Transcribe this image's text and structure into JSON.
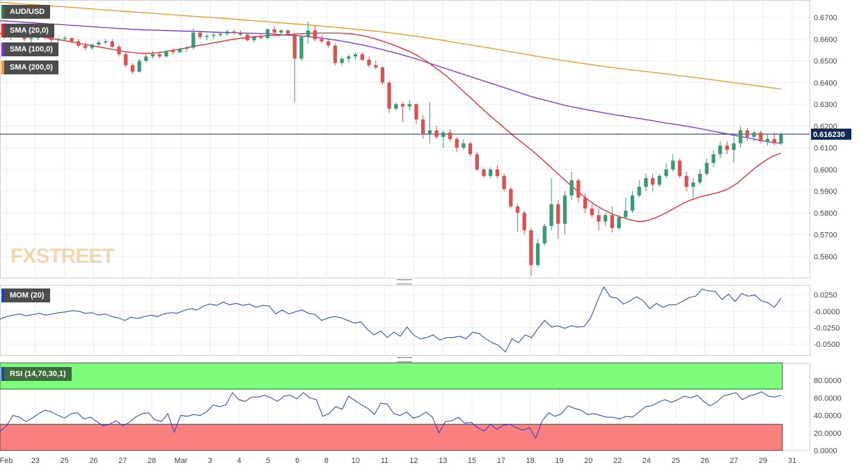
{
  "symbol": "AUD/USD",
  "indicators": {
    "sma20": "SMA (20,0)",
    "sma100": "SMA (100,0)",
    "sma200": "SMA (200,0)",
    "mom": "MOM (20)",
    "rsi": "RSI (14,70,30,1)"
  },
  "logo": "FXSTREET",
  "colors": {
    "sma20": "#e8212b",
    "sma100": "#7b2fd6",
    "sma200": "#f7941d",
    "mom_line": "#1f3ccf",
    "rsi_line": "#1f3ccf",
    "bull": "#3a9a74",
    "bear": "#d9534f",
    "overbought_zone": "#7dfc7d",
    "oversold_zone": "#fa7f7f",
    "price_line": "#0e2a5a"
  },
  "chart_data": [
    {
      "type": "candlestick",
      "name": "price",
      "last_price_label": "0.616230",
      "last_price": 0.61623,
      "ylim": [
        0.55,
        0.678
      ],
      "yticks": [
        "0.6700",
        "0.6600",
        "0.6500",
        "0.6400",
        "0.6300",
        "0.6200",
        "0.6100",
        "0.6000",
        "0.5900",
        "0.5800",
        "0.5700",
        "0.5600"
      ],
      "xticks": [
        "Feb",
        "23",
        "25",
        "26",
        "27",
        "28",
        "Mar",
        "3",
        "4",
        "5",
        "6",
        "8",
        "10",
        "11",
        "12",
        "13",
        "15",
        "17",
        "18",
        "19",
        "20",
        "22",
        "24",
        "25",
        "26",
        "27",
        "29",
        "31"
      ],
      "ohlc": [
        [
          0.663,
          0.664,
          0.66,
          0.661
        ],
        [
          0.661,
          0.663,
          0.6595,
          0.6625
        ],
        [
          0.6625,
          0.664,
          0.661,
          0.6615
        ],
        [
          0.6615,
          0.6625,
          0.659,
          0.66
        ],
        [
          0.66,
          0.6615,
          0.658,
          0.6605
        ],
        [
          0.6605,
          0.6625,
          0.6595,
          0.662
        ],
        [
          0.662,
          0.663,
          0.66,
          0.661
        ],
        [
          0.661,
          0.662,
          0.6585,
          0.6595
        ],
        [
          0.6595,
          0.661,
          0.6585,
          0.66
        ],
        [
          0.66,
          0.6615,
          0.659,
          0.6605
        ],
        [
          0.6605,
          0.661,
          0.658,
          0.659
        ],
        [
          0.659,
          0.66,
          0.656,
          0.657
        ],
        [
          0.657,
          0.6585,
          0.655,
          0.656
        ],
        [
          0.656,
          0.658,
          0.655,
          0.6575
        ],
        [
          0.6575,
          0.6595,
          0.6565,
          0.6585
        ],
        [
          0.6585,
          0.66,
          0.6575,
          0.659
        ],
        [
          0.659,
          0.66,
          0.656,
          0.6565
        ],
        [
          0.6565,
          0.6575,
          0.652,
          0.653
        ],
        [
          0.653,
          0.654,
          0.647,
          0.648
        ],
        [
          0.648,
          0.649,
          0.644,
          0.645
        ],
        [
          0.645,
          0.651,
          0.6445,
          0.65
        ],
        [
          0.65,
          0.653,
          0.649,
          0.652
        ],
        [
          0.652,
          0.6545,
          0.651,
          0.653
        ],
        [
          0.653,
          0.6545,
          0.651,
          0.652
        ],
        [
          0.652,
          0.655,
          0.6515,
          0.6545
        ],
        [
          0.6545,
          0.656,
          0.653,
          0.654
        ],
        [
          0.654,
          0.656,
          0.6535,
          0.6555
        ],
        [
          0.6555,
          0.657,
          0.654,
          0.656
        ],
        [
          0.656,
          0.665,
          0.655,
          0.663
        ],
        [
          0.663,
          0.664,
          0.66,
          0.661
        ],
        [
          0.661,
          0.6625,
          0.6595,
          0.6615
        ],
        [
          0.6615,
          0.663,
          0.66,
          0.662
        ],
        [
          0.662,
          0.6635,
          0.661,
          0.6625
        ],
        [
          0.6625,
          0.6645,
          0.6615,
          0.6635
        ],
        [
          0.6635,
          0.6645,
          0.662,
          0.663
        ],
        [
          0.663,
          0.664,
          0.6615,
          0.662
        ],
        [
          0.662,
          0.663,
          0.659,
          0.6595
        ],
        [
          0.6595,
          0.6615,
          0.6585,
          0.661
        ],
        [
          0.661,
          0.6625,
          0.66,
          0.6605
        ],
        [
          0.6605,
          0.665,
          0.66,
          0.6645
        ],
        [
          0.6645,
          0.666,
          0.662,
          0.663
        ],
        [
          0.663,
          0.6645,
          0.662,
          0.664
        ],
        [
          0.664,
          0.6645,
          0.662,
          0.6625
        ],
        [
          0.6625,
          0.663,
          0.631,
          0.651
        ],
        [
          0.651,
          0.662,
          0.65,
          0.661
        ],
        [
          0.661,
          0.668,
          0.658,
          0.664
        ],
        [
          0.664,
          0.666,
          0.659,
          0.66
        ],
        [
          0.66,
          0.662,
          0.658,
          0.659
        ],
        [
          0.659,
          0.66,
          0.656,
          0.657
        ],
        [
          0.657,
          0.658,
          0.648,
          0.649
        ],
        [
          0.649,
          0.652,
          0.648,
          0.651
        ],
        [
          0.651,
          0.653,
          0.649,
          0.652
        ],
        [
          0.652,
          0.654,
          0.6505,
          0.653
        ],
        [
          0.653,
          0.654,
          0.65,
          0.6505
        ],
        [
          0.6505,
          0.652,
          0.647,
          0.648
        ],
        [
          0.648,
          0.65,
          0.646,
          0.647
        ],
        [
          0.647,
          0.6475,
          0.639,
          0.64
        ],
        [
          0.64,
          0.641,
          0.626,
          0.628
        ],
        [
          0.628,
          0.631,
          0.627,
          0.63
        ],
        [
          0.63,
          0.631,
          0.622,
          0.629
        ],
        [
          0.629,
          0.632,
          0.627,
          0.63
        ],
        [
          0.63,
          0.6305,
          0.621,
          0.623
        ],
        [
          0.623,
          0.625,
          0.614,
          0.616
        ],
        [
          0.616,
          0.631,
          0.612,
          0.618
        ],
        [
          0.618,
          0.62,
          0.614,
          0.615
        ],
        [
          0.615,
          0.618,
          0.61,
          0.617
        ],
        [
          0.617,
          0.6185,
          0.613,
          0.614
        ],
        [
          0.614,
          0.615,
          0.608,
          0.61
        ],
        [
          0.61,
          0.614,
          0.609,
          0.612
        ],
        [
          0.612,
          0.613,
          0.606,
          0.607
        ],
        [
          0.607,
          0.608,
          0.599,
          0.6
        ],
        [
          0.6,
          0.601,
          0.596,
          0.597
        ],
        [
          0.597,
          0.601,
          0.596,
          0.6
        ],
        [
          0.6,
          0.602,
          0.596,
          0.597
        ],
        [
          0.597,
          0.598,
          0.59,
          0.591
        ],
        [
          0.591,
          0.592,
          0.582,
          0.583
        ],
        [
          0.583,
          0.584,
          0.571,
          0.58
        ],
        [
          0.58,
          0.581,
          0.57,
          0.572
        ],
        [
          0.572,
          0.573,
          0.551,
          0.556
        ],
        [
          0.556,
          0.568,
          0.555,
          0.566
        ],
        [
          0.566,
          0.575,
          0.565,
          0.574
        ],
        [
          0.574,
          0.596,
          0.572,
          0.584
        ],
        [
          0.584,
          0.586,
          0.568,
          0.575
        ],
        [
          0.575,
          0.59,
          0.57,
          0.588
        ],
        [
          0.588,
          0.599,
          0.586,
          0.595
        ],
        [
          0.595,
          0.596,
          0.585,
          0.587
        ],
        [
          0.587,
          0.589,
          0.58,
          0.582
        ],
        [
          0.582,
          0.584,
          0.578,
          0.579
        ],
        [
          0.579,
          0.582,
          0.572,
          0.576
        ],
        [
          0.576,
          0.58,
          0.574,
          0.579
        ],
        [
          0.579,
          0.583,
          0.571,
          0.573
        ],
        [
          0.573,
          0.579,
          0.572,
          0.578
        ],
        [
          0.578,
          0.587,
          0.577,
          0.581
        ],
        [
          0.581,
          0.59,
          0.58,
          0.588
        ],
        [
          0.588,
          0.595,
          0.587,
          0.592
        ],
        [
          0.592,
          0.598,
          0.59,
          0.596
        ],
        [
          0.596,
          0.598,
          0.59,
          0.593
        ],
        [
          0.593,
          0.598,
          0.592,
          0.597
        ],
        [
          0.597,
          0.603,
          0.596,
          0.6
        ],
        [
          0.6,
          0.607,
          0.599,
          0.604
        ],
        [
          0.604,
          0.605,
          0.596,
          0.597
        ],
        [
          0.597,
          0.599,
          0.59,
          0.592
        ],
        [
          0.592,
          0.596,
          0.587,
          0.594
        ],
        [
          0.594,
          0.6,
          0.593,
          0.598
        ],
        [
          0.598,
          0.605,
          0.597,
          0.603
        ],
        [
          0.603,
          0.609,
          0.601,
          0.607
        ],
        [
          0.607,
          0.613,
          0.605,
          0.611
        ],
        [
          0.611,
          0.613,
          0.607,
          0.609
        ],
        [
          0.609,
          0.615,
          0.603,
          0.612
        ],
        [
          0.612,
          0.62,
          0.61,
          0.618
        ],
        [
          0.618,
          0.619,
          0.613,
          0.615
        ],
        [
          0.615,
          0.618,
          0.613,
          0.617
        ],
        [
          0.617,
          0.618,
          0.612,
          0.613
        ],
        [
          0.613,
          0.616,
          0.611,
          0.614
        ],
        [
          0.614,
          0.617,
          0.611,
          0.612
        ],
        [
          0.612,
          0.617,
          0.611,
          0.61623
        ]
      ],
      "sma20": [
        0.6625,
        0.6622,
        0.6618,
        0.6615,
        0.6612,
        0.6608,
        0.6602,
        0.6595,
        0.6588,
        0.658,
        0.6572,
        0.6565,
        0.6558,
        0.655,
        0.6543,
        0.6538,
        0.6535,
        0.6535,
        0.6538,
        0.6545,
        0.6552,
        0.656,
        0.6568,
        0.6575,
        0.6582,
        0.659,
        0.6597,
        0.6603,
        0.6608,
        0.6612,
        0.6615,
        0.6618,
        0.662,
        0.6622,
        0.6625,
        0.6627,
        0.6628,
        0.6628,
        0.6628,
        0.6626,
        0.6622,
        0.6615,
        0.6605,
        0.6592,
        0.6578,
        0.6562,
        0.6545,
        0.6525,
        0.65,
        0.647,
        0.644,
        0.6405,
        0.6368,
        0.633,
        0.6292,
        0.6255,
        0.622,
        0.6185,
        0.615,
        0.6118,
        0.6085,
        0.605,
        0.6012,
        0.5975,
        0.5938,
        0.5902,
        0.5868,
        0.5838,
        0.5815,
        0.5795,
        0.578,
        0.5768,
        0.576,
        0.5765,
        0.578,
        0.58,
        0.5822,
        0.5845,
        0.5862,
        0.5875,
        0.5885,
        0.5895,
        0.591,
        0.5935,
        0.597,
        0.6005,
        0.6035,
        0.606,
        0.6075
      ],
      "sma100": [
        0.6685,
        0.668,
        0.6675,
        0.667,
        0.6665,
        0.666,
        0.6655,
        0.665,
        0.6645,
        0.6642,
        0.664,
        0.6637,
        0.6635,
        0.6632,
        0.663,
        0.6627,
        0.6625,
        0.662,
        0.6615,
        0.6608,
        0.6598,
        0.6585,
        0.657,
        0.6552,
        0.6532,
        0.651,
        0.6485,
        0.646,
        0.6435,
        0.641,
        0.6385,
        0.636,
        0.6335,
        0.6315,
        0.6295,
        0.628,
        0.6265,
        0.6252,
        0.624,
        0.6228,
        0.6215,
        0.6203,
        0.619,
        0.6175,
        0.616,
        0.6145,
        0.613,
        0.612
      ],
      "sma200": [
        0.677,
        0.6762,
        0.6755,
        0.6748,
        0.674,
        0.6732,
        0.6725,
        0.6718,
        0.671,
        0.6703,
        0.6696,
        0.6688,
        0.668,
        0.6672,
        0.6664,
        0.6655,
        0.6645,
        0.6635,
        0.6622,
        0.6608,
        0.6592,
        0.6575,
        0.6558,
        0.654,
        0.6522,
        0.6505,
        0.649,
        0.6475,
        0.6462,
        0.645,
        0.6438,
        0.6425,
        0.6412,
        0.6398,
        0.6384,
        0.637
      ]
    },
    {
      "type": "line",
      "name": "MOM (20)",
      "ylim": [
        -0.068,
        0.04
      ],
      "yticks": [
        "0.0250",
        "-0.0000",
        "-0.0250",
        "-0.0500"
      ],
      "values": [
        -0.012,
        -0.008,
        -0.006,
        -0.004,
        -0.007,
        -0.005,
        -0.003,
        -0.006,
        -0.004,
        -0.002,
        -0.001,
        0.001,
        0.0,
        -0.003,
        -0.002,
        -0.006,
        -0.004,
        -0.008,
        -0.01,
        -0.014,
        -0.009,
        -0.011,
        -0.008,
        -0.006,
        -0.008,
        -0.004,
        -0.002,
        -0.003,
        0.001,
        0.004,
        0.002,
        0.008,
        0.011,
        0.009,
        0.014,
        0.01,
        0.012,
        0.009,
        0.011,
        0.006,
        0.009,
        0.008,
        -0.004,
        0.002,
        -0.004,
        -0.001,
        0.002,
        -0.003,
        -0.005,
        -0.014,
        -0.01,
        -0.008,
        -0.01,
        -0.014,
        -0.018,
        -0.016,
        -0.028,
        -0.036,
        -0.03,
        -0.04,
        -0.032,
        -0.038,
        -0.024,
        -0.036,
        -0.042,
        -0.04,
        -0.036,
        -0.044,
        -0.04,
        -0.04,
        -0.038,
        -0.042,
        -0.032,
        -0.034,
        -0.042,
        -0.048,
        -0.052,
        -0.062,
        -0.042,
        -0.048,
        -0.036,
        -0.04,
        -0.026,
        -0.014,
        -0.024,
        -0.022,
        -0.026,
        -0.022,
        -0.024,
        -0.023,
        -0.01,
        0.015,
        0.037,
        0.022,
        0.02,
        0.011,
        0.016,
        0.022,
        0.016,
        0.004,
        0.012,
        0.006,
        0.01,
        0.01,
        0.015,
        0.021,
        0.023,
        0.034,
        0.031,
        0.03,
        0.018,
        0.026,
        0.015,
        0.027,
        0.023,
        0.025,
        0.016,
        0.013,
        0.006,
        0.02
      ]
    },
    {
      "type": "line",
      "name": "RSI (14,70,30,1)",
      "ylim": [
        0,
        100
      ],
      "yticks": [
        "80.0000",
        "60.0000",
        "40.0000",
        "20.0000",
        "0.0000"
      ],
      "overbought": 70,
      "oversold": 30,
      "values": [
        22,
        28,
        40,
        38,
        33,
        37,
        42,
        46,
        44,
        40,
        37,
        42,
        43,
        36,
        38,
        33,
        28,
        30,
        34,
        28,
        32,
        38,
        42,
        43,
        35,
        33,
        42,
        21,
        40,
        39,
        41,
        40,
        44,
        52,
        50,
        52,
        66,
        58,
        56,
        61,
        61,
        63,
        60,
        56,
        62,
        63,
        59,
        66,
        60,
        58,
        39,
        42,
        50,
        47,
        62,
        57,
        52,
        48,
        41,
        54,
        53,
        42,
        40,
        44,
        37,
        39,
        44,
        38,
        20,
        33,
        34,
        38,
        31,
        32,
        26,
        22,
        30,
        24,
        29,
        30,
        26,
        23,
        26,
        14,
        34,
        43,
        39,
        42,
        51,
        48,
        46,
        41,
        42,
        40,
        38,
        38,
        36,
        39,
        38,
        44,
        50,
        51,
        55,
        58,
        55,
        58,
        62,
        60,
        63,
        56,
        51,
        55,
        62,
        64,
        66,
        58,
        62,
        64,
        67,
        62,
        61,
        63
      ]
    },
    {
      "type": "axis",
      "name": "dates",
      "xticks": [
        "Feb",
        "23",
        "25",
        "26",
        "27",
        "28",
        "Mar",
        "3",
        "4",
        "5",
        "6",
        "8",
        "10",
        "11",
        "12",
        "13",
        "15",
        "17",
        "18",
        "19",
        "20",
        "22",
        "24",
        "25",
        "26",
        "27",
        "29",
        "31"
      ]
    }
  ]
}
